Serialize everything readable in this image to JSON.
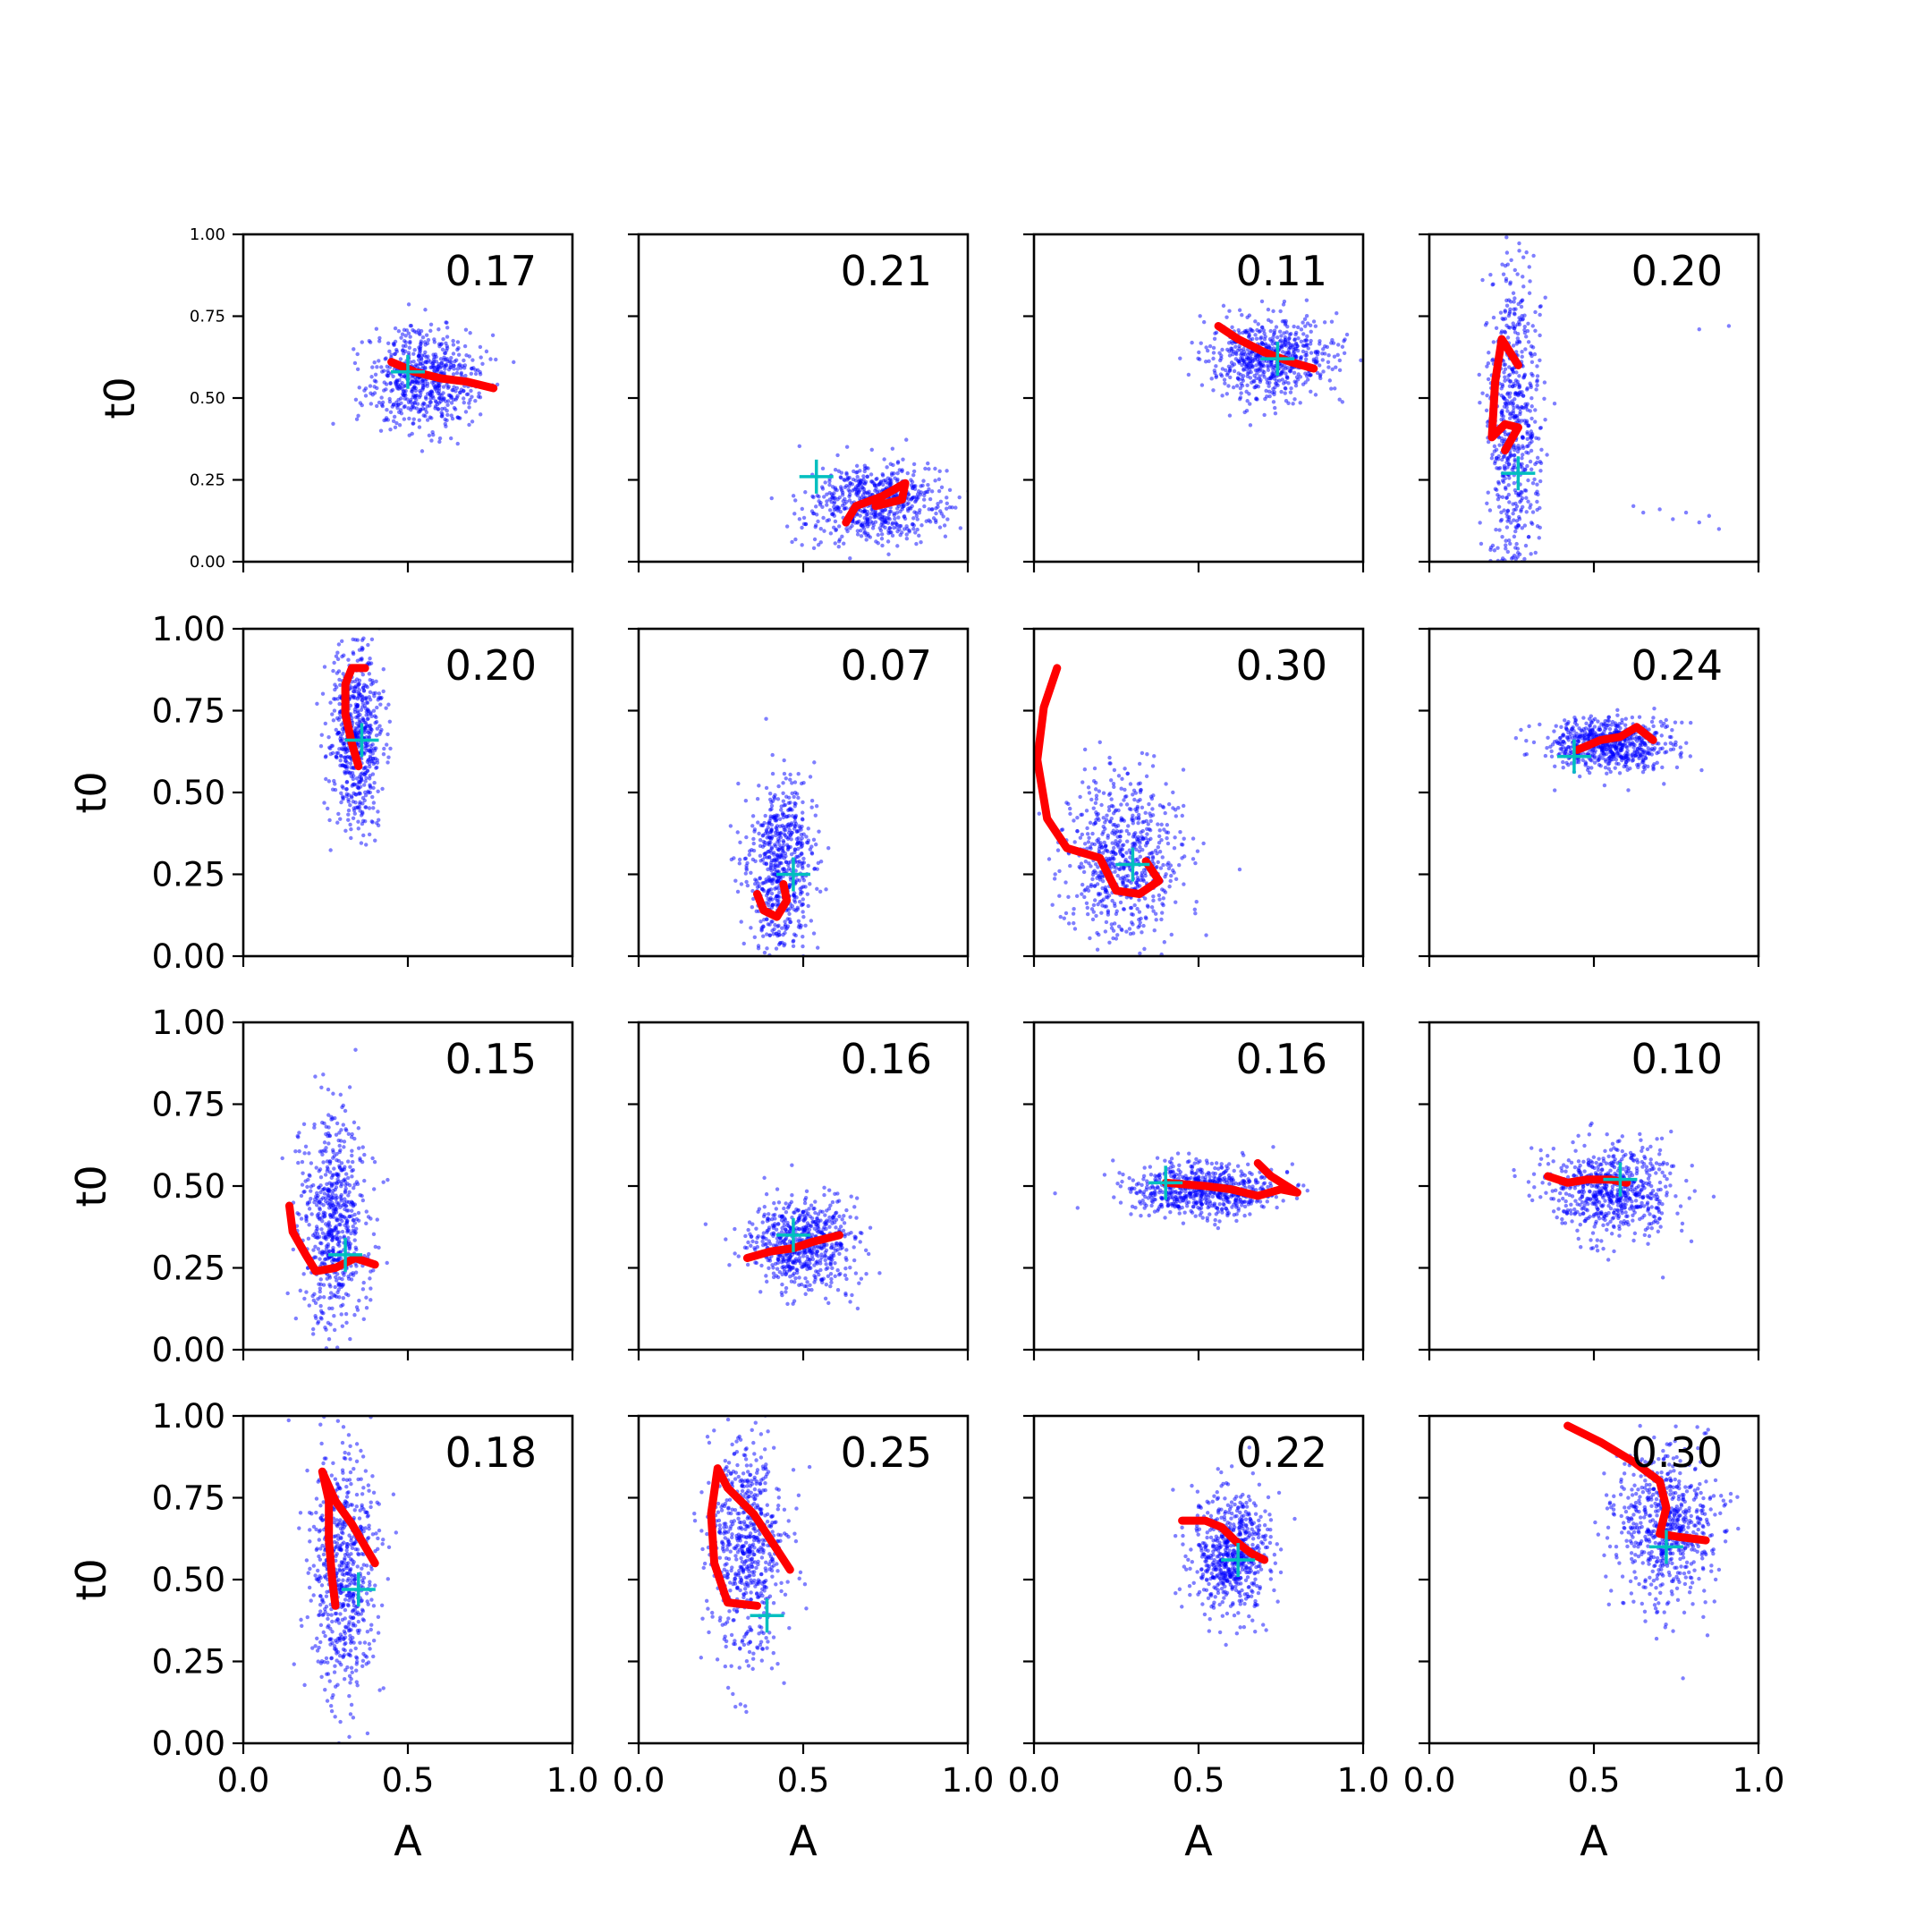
{
  "chart_data": {
    "type": "scatter",
    "rows": 4,
    "cols": 4,
    "xlabel": "A",
    "ylabel": "t0",
    "xlim": [
      0,
      1
    ],
    "ylim": [
      0,
      1
    ],
    "xticks": [
      "0.0",
      "0.5",
      "1.0"
    ],
    "yticks": [
      "0.00",
      "0.25",
      "0.50",
      "0.75",
      "1.00"
    ],
    "colors": {
      "samples": "#0000ff",
      "path": "#ff0000",
      "truth": "#00bfbf"
    },
    "panels": [
      {
        "annotation": "0.17",
        "truth": [
          0.5,
          0.58
        ],
        "cloud": {
          "cx": 0.55,
          "cy": 0.56,
          "sx": 0.085,
          "sy": 0.075,
          "n": 650
        },
        "path": [
          [
            0.45,
            0.61
          ],
          [
            0.52,
            0.58
          ],
          [
            0.6,
            0.56
          ],
          [
            0.68,
            0.55
          ],
          [
            0.76,
            0.53
          ]
        ]
      },
      {
        "annotation": "0.21",
        "truth": [
          0.54,
          0.26
        ],
        "cloud": {
          "cx": 0.72,
          "cy": 0.18,
          "sx": 0.1,
          "sy": 0.06,
          "n": 650
        },
        "path": [
          [
            0.63,
            0.12
          ],
          [
            0.66,
            0.17
          ],
          [
            0.74,
            0.2
          ],
          [
            0.81,
            0.24
          ],
          [
            0.8,
            0.19
          ],
          [
            0.72,
            0.17
          ]
        ]
      },
      {
        "annotation": "0.11",
        "truth": [
          0.74,
          0.62
        ],
        "cloud": {
          "cx": 0.72,
          "cy": 0.62,
          "sx": 0.09,
          "sy": 0.06,
          "n": 650
        },
        "path": [
          [
            0.56,
            0.72
          ],
          [
            0.62,
            0.68
          ],
          [
            0.7,
            0.64
          ],
          [
            0.78,
            0.61
          ],
          [
            0.85,
            0.59
          ]
        ]
      },
      {
        "annotation": "0.20",
        "truth": [
          0.27,
          0.27
        ],
        "cloud": {
          "cx": 0.26,
          "cy": 0.42,
          "sx": 0.04,
          "sy": 0.25,
          "n": 650
        },
        "path": [
          [
            0.27,
            0.6
          ],
          [
            0.22,
            0.68
          ],
          [
            0.2,
            0.55
          ],
          [
            0.19,
            0.38
          ],
          [
            0.23,
            0.42
          ],
          [
            0.27,
            0.41
          ],
          [
            0.23,
            0.34
          ]
        ],
        "extra_points": [
          [
            0.62,
            0.17
          ],
          [
            0.65,
            0.15
          ],
          [
            0.7,
            0.16
          ],
          [
            0.74,
            0.13
          ],
          [
            0.78,
            0.15
          ],
          [
            0.82,
            0.12
          ],
          [
            0.85,
            0.14
          ],
          [
            0.88,
            0.1
          ],
          [
            0.91,
            0.72
          ],
          [
            0.82,
            0.71
          ]
        ]
      },
      {
        "annotation": "0.20",
        "truth": [
          0.36,
          0.66
        ],
        "cloud": {
          "cx": 0.34,
          "cy": 0.68,
          "sx": 0.04,
          "sy": 0.14,
          "n": 650
        },
        "path": [
          [
            0.35,
            0.58
          ],
          [
            0.33,
            0.65
          ],
          [
            0.31,
            0.74
          ],
          [
            0.31,
            0.83
          ],
          [
            0.33,
            0.88
          ],
          [
            0.37,
            0.88
          ]
        ]
      },
      {
        "annotation": "0.07",
        "truth": [
          0.47,
          0.25
        ],
        "cloud": {
          "cx": 0.43,
          "cy": 0.28,
          "sx": 0.05,
          "sy": 0.13,
          "n": 650
        },
        "path": [
          [
            0.36,
            0.19
          ],
          [
            0.38,
            0.14
          ],
          [
            0.42,
            0.12
          ],
          [
            0.45,
            0.17
          ],
          [
            0.44,
            0.22
          ]
        ]
      },
      {
        "annotation": "0.30",
        "truth": [
          0.3,
          0.28
        ],
        "cloud": {
          "cx": 0.28,
          "cy": 0.3,
          "sx": 0.09,
          "sy": 0.13,
          "n": 650
        },
        "path": [
          [
            0.07,
            0.88
          ],
          [
            0.03,
            0.76
          ],
          [
            0.01,
            0.6
          ],
          [
            0.04,
            0.42
          ],
          [
            0.1,
            0.33
          ],
          [
            0.2,
            0.3
          ],
          [
            0.25,
            0.2
          ],
          [
            0.32,
            0.19
          ],
          [
            0.38,
            0.23
          ],
          [
            0.34,
            0.29
          ]
        ]
      },
      {
        "annotation": "0.24",
        "truth": [
          0.44,
          0.61
        ],
        "cloud": {
          "cx": 0.55,
          "cy": 0.65,
          "sx": 0.09,
          "sy": 0.04,
          "n": 650
        },
        "path": [
          [
            0.45,
            0.63
          ],
          [
            0.52,
            0.66
          ],
          [
            0.58,
            0.67
          ],
          [
            0.63,
            0.7
          ],
          [
            0.68,
            0.66
          ]
        ]
      },
      {
        "annotation": "0.15",
        "truth": [
          0.31,
          0.29
        ],
        "cloud": {
          "cx": 0.28,
          "cy": 0.4,
          "sx": 0.05,
          "sy": 0.17,
          "n": 650
        },
        "path": [
          [
            0.14,
            0.44
          ],
          [
            0.15,
            0.36
          ],
          [
            0.19,
            0.29
          ],
          [
            0.22,
            0.24
          ],
          [
            0.28,
            0.25
          ],
          [
            0.34,
            0.28
          ],
          [
            0.4,
            0.26
          ]
        ]
      },
      {
        "annotation": "0.16",
        "truth": [
          0.47,
          0.35
        ],
        "cloud": {
          "cx": 0.5,
          "cy": 0.32,
          "sx": 0.08,
          "sy": 0.07,
          "n": 650
        },
        "path": [
          [
            0.33,
            0.28
          ],
          [
            0.4,
            0.3
          ],
          [
            0.47,
            0.31
          ],
          [
            0.53,
            0.33
          ],
          [
            0.61,
            0.35
          ]
        ]
      },
      {
        "annotation": "0.16",
        "truth": [
          0.4,
          0.51
        ],
        "cloud": {
          "cx": 0.52,
          "cy": 0.49,
          "sx": 0.11,
          "sy": 0.04,
          "n": 650
        },
        "path": [
          [
            0.4,
            0.51
          ],
          [
            0.52,
            0.5
          ],
          [
            0.6,
            0.49
          ],
          [
            0.68,
            0.47
          ],
          [
            0.75,
            0.49
          ],
          [
            0.8,
            0.48
          ],
          [
            0.72,
            0.53
          ],
          [
            0.68,
            0.57
          ]
        ]
      },
      {
        "annotation": "0.10",
        "truth": [
          0.58,
          0.52
        ],
        "cloud": {
          "cx": 0.55,
          "cy": 0.49,
          "sx": 0.1,
          "sy": 0.07,
          "n": 650
        },
        "path": [
          [
            0.36,
            0.53
          ],
          [
            0.42,
            0.51
          ],
          [
            0.48,
            0.52
          ],
          [
            0.55,
            0.52
          ],
          [
            0.6,
            0.51
          ]
        ]
      },
      {
        "annotation": "0.18",
        "truth": [
          0.35,
          0.47
        ],
        "cloud": {
          "cx": 0.3,
          "cy": 0.52,
          "sx": 0.05,
          "sy": 0.2,
          "n": 650
        },
        "path": [
          [
            0.28,
            0.42
          ],
          [
            0.27,
            0.5
          ],
          [
            0.26,
            0.62
          ],
          [
            0.26,
            0.74
          ],
          [
            0.24,
            0.83
          ],
          [
            0.28,
            0.74
          ],
          [
            0.33,
            0.67
          ],
          [
            0.4,
            0.55
          ]
        ]
      },
      {
        "annotation": "0.25",
        "truth": [
          0.39,
          0.39
        ],
        "cloud": {
          "cx": 0.33,
          "cy": 0.6,
          "sx": 0.06,
          "sy": 0.18,
          "n": 650
        },
        "path": [
          [
            0.36,
            0.42
          ],
          [
            0.27,
            0.43
          ],
          [
            0.23,
            0.55
          ],
          [
            0.22,
            0.7
          ],
          [
            0.24,
            0.84
          ],
          [
            0.27,
            0.78
          ],
          [
            0.35,
            0.7
          ],
          [
            0.46,
            0.53
          ]
        ]
      },
      {
        "annotation": "0.22",
        "truth": [
          0.62,
          0.56
        ],
        "cloud": {
          "cx": 0.6,
          "cy": 0.58,
          "sx": 0.06,
          "sy": 0.09,
          "n": 650
        },
        "path": [
          [
            0.45,
            0.68
          ],
          [
            0.52,
            0.68
          ],
          [
            0.57,
            0.66
          ],
          [
            0.61,
            0.62
          ],
          [
            0.66,
            0.58
          ],
          [
            0.7,
            0.56
          ]
        ]
      },
      {
        "annotation": "0.30",
        "truth": [
          0.72,
          0.6
        ],
        "cloud": {
          "cx": 0.72,
          "cy": 0.66,
          "sx": 0.08,
          "sy": 0.12,
          "n": 650
        },
        "path": [
          [
            0.42,
            0.97
          ],
          [
            0.52,
            0.92
          ],
          [
            0.62,
            0.86
          ],
          [
            0.7,
            0.8
          ],
          [
            0.72,
            0.72
          ],
          [
            0.7,
            0.64
          ],
          [
            0.76,
            0.63
          ],
          [
            0.84,
            0.62
          ]
        ]
      }
    ]
  }
}
